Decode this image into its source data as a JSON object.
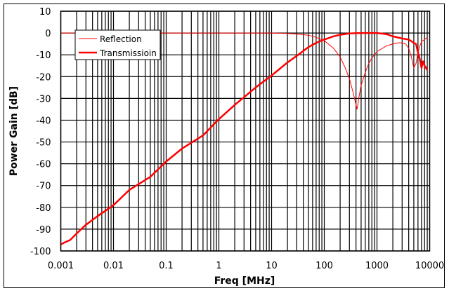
{
  "chart_data": {
    "type": "line",
    "title": "",
    "xlabel": "Freq [MHz]",
    "ylabel": "Power Gain [dB]",
    "xscale": "log",
    "xlim": [
      0.001,
      10000
    ],
    "ylim": [
      -100,
      10
    ],
    "grid": true,
    "legend_position": "upper-left",
    "x_ticks": [
      "0.001",
      "0.01",
      "0.1",
      "1",
      "10",
      "100",
      "1000",
      "10000"
    ],
    "y_ticks": [
      "10",
      "0",
      "-10",
      "-20",
      "-30",
      "-40",
      "-50",
      "-60",
      "-70",
      "-80",
      "-90",
      "-100"
    ],
    "series": [
      {
        "name": "Reflection",
        "color": "#ff0000",
        "line_width": 1,
        "x": [
          0.001,
          1,
          10,
          20,
          30,
          50,
          70,
          100,
          150,
          200,
          250,
          300,
          350,
          400,
          420,
          450,
          500,
          600,
          700,
          800,
          1000,
          1500,
          2000,
          2500,
          3000,
          3500,
          4000,
          4500,
          5000,
          5500,
          6000,
          6500,
          7000,
          8000,
          9000
        ],
        "y": [
          0,
          0,
          0,
          -0.2,
          -0.5,
          -1,
          -2,
          -3.5,
          -7,
          -11,
          -16,
          -21,
          -27,
          -33,
          -35,
          -30,
          -24,
          -18,
          -14,
          -11.5,
          -8.5,
          -6,
          -5,
          -4.5,
          -4.5,
          -5,
          -7,
          -11,
          -16,
          -14,
          -9,
          -6,
          -4,
          -3,
          -2
        ]
      },
      {
        "name": "Transmissioin",
        "color": "#ff0000",
        "line_width": 2.5,
        "x": [
          0.001,
          0.0012,
          0.0015,
          0.002,
          0.003,
          0.005,
          0.01,
          0.02,
          0.05,
          0.1,
          0.2,
          0.5,
          1,
          2,
          5,
          10,
          20,
          30,
          50,
          70,
          100,
          150,
          200,
          300,
          500,
          1000,
          1500,
          2000,
          3000,
          4000,
          5000,
          5500,
          6000,
          6500,
          7000,
          7500,
          8000,
          9000
        ],
        "y": [
          -97,
          -96,
          -95,
          -92,
          -88,
          -84,
          -79,
          -72,
          -66,
          -59,
          -53,
          -47,
          -39.5,
          -33,
          -25,
          -19.5,
          -13.5,
          -10.5,
          -6.5,
          -4.5,
          -3,
          -1.5,
          -0.8,
          -0.2,
          0,
          0,
          -0.5,
          -1.5,
          -2.5,
          -3,
          -4.5,
          -5,
          -9,
          -12,
          -16,
          -13,
          -15,
          -17
        ]
      }
    ]
  },
  "legend": {
    "items": [
      {
        "label": "Reflection"
      },
      {
        "label": "Transmissioin"
      }
    ]
  }
}
